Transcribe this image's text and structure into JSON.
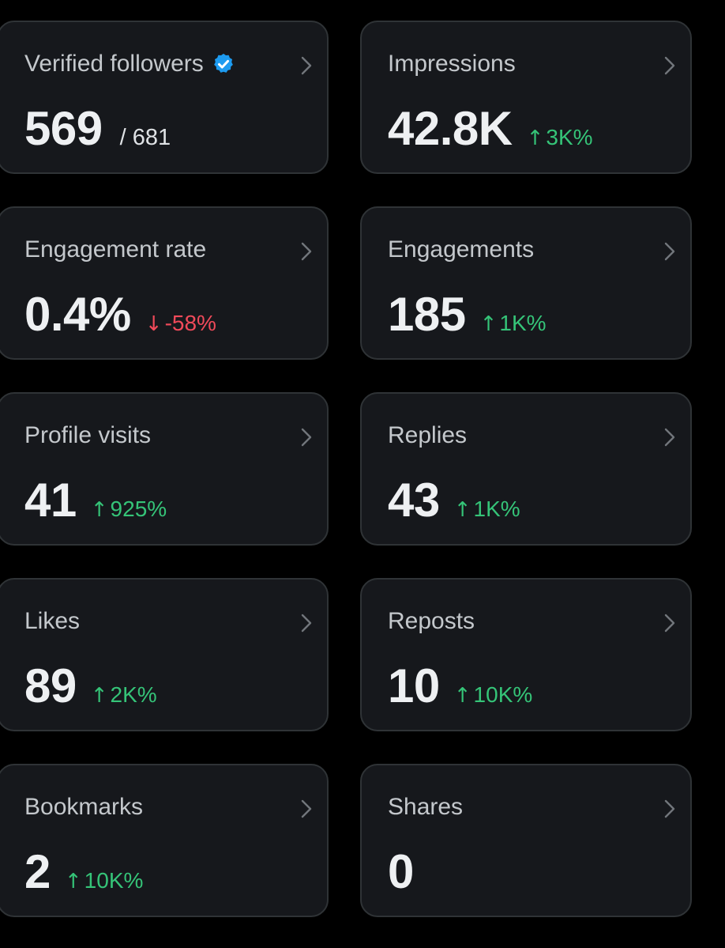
{
  "colors": {
    "background": "#000000",
    "card": "#16181c",
    "card_border": "#2f3336",
    "up": "#35c478",
    "down": "#f04a5a",
    "verified": "#1d9bf0"
  },
  "cards": {
    "verified_followers": {
      "title": "Verified followers",
      "icon": "verified-badge-icon",
      "value": "569",
      "secondary": "/ 681"
    },
    "impressions": {
      "title": "Impressions",
      "value": "42.8K",
      "delta": "3K%",
      "direction": "up"
    },
    "engagement_rate": {
      "title": "Engagement rate",
      "value": "0.4%",
      "delta": "-58%",
      "direction": "down"
    },
    "engagements": {
      "title": "Engagements",
      "value": "185",
      "delta": "1K%",
      "direction": "up"
    },
    "profile_visits": {
      "title": "Profile visits",
      "value": "41",
      "delta": "925%",
      "direction": "up"
    },
    "replies": {
      "title": "Replies",
      "value": "43",
      "delta": "1K%",
      "direction": "up"
    },
    "likes": {
      "title": "Likes",
      "value": "89",
      "delta": "2K%",
      "direction": "up"
    },
    "reposts": {
      "title": "Reposts",
      "value": "10",
      "delta": "10K%",
      "direction": "up"
    },
    "bookmarks": {
      "title": "Bookmarks",
      "value": "2",
      "delta": "10K%",
      "direction": "up"
    },
    "shares": {
      "title": "Shares",
      "value": "0"
    }
  },
  "arrows": {
    "up": "↑",
    "down": "↓"
  }
}
